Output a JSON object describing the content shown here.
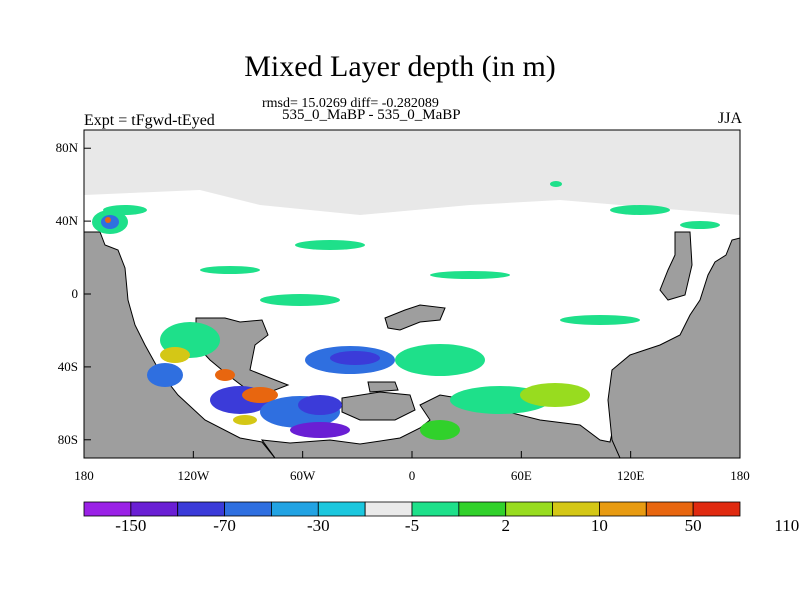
{
  "chart_data": {
    "type": "heatmap",
    "title": "Mixed Layer depth (in m)",
    "stats_text": "rmsd= 15.0269 diff= -0.282089",
    "subtitle": "535_0_MaBP - 535_0_MaBP",
    "left_label": "Expt = tFgwd-tEyed",
    "right_label": "JJA",
    "x_ticks": [
      "180",
      "120W",
      "60W",
      "0",
      "60E",
      "120E",
      "180"
    ],
    "y_ticks": [
      "80N",
      "40N",
      "0",
      "40S",
      "80S"
    ],
    "xlim": [
      -180,
      180
    ],
    "ylim": [
      -90,
      90
    ],
    "colorbar": {
      "labels": [
        "-150",
        "-70",
        "-30",
        "-5",
        "2",
        "10",
        "50",
        "110"
      ],
      "colors": [
        "#9a21e6",
        "#6a1fd4",
        "#3b3bd9",
        "#2f6fe0",
        "#22a3e3",
        "#1bc7de",
        "#eaeaea",
        "#1ee08a",
        "#31d12b",
        "#98dc1f",
        "#d4c716",
        "#e89b11",
        "#e8660f",
        "#e02a10"
      ]
    },
    "land_color": "#9e9e9e",
    "ocean_color": "#e8e8e8"
  }
}
